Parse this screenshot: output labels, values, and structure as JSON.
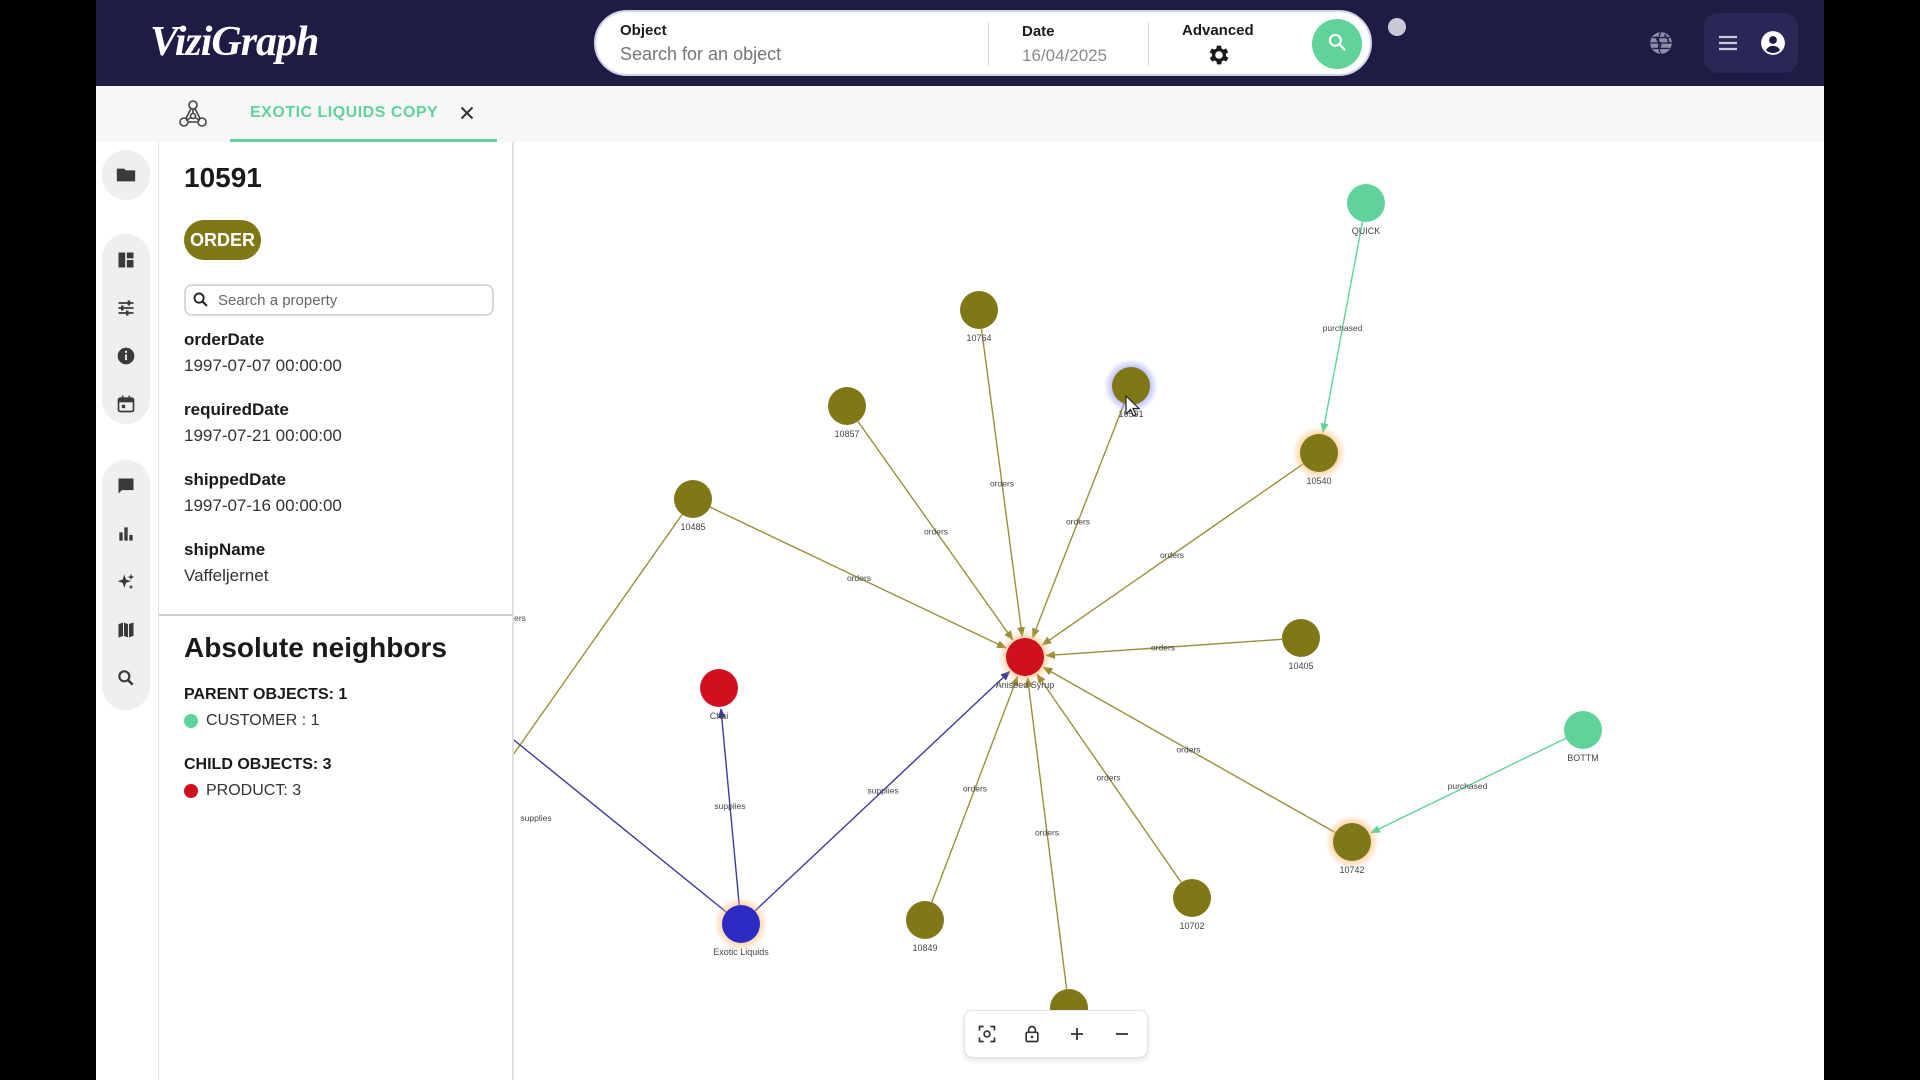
{
  "app": {
    "logo": "ViziGraph"
  },
  "search": {
    "object_label": "Object",
    "object_placeholder": "Search for an object",
    "date_label": "Date",
    "date_value": "16/04/2025",
    "advanced_label": "Advanced"
  },
  "tabs": [
    {
      "label": "EXOTIC LIQUIDS COPY",
      "active": true
    }
  ],
  "panel": {
    "object_id": "10591",
    "object_type": "ORDER",
    "type_color": "#807717",
    "property_search_placeholder": "Search a property",
    "properties": [
      {
        "name": "orderDate",
        "value": "1997-07-07 00:00:00"
      },
      {
        "name": "requiredDate",
        "value": "1997-07-21 00:00:00"
      },
      {
        "name": "shippedDate",
        "value": "1997-07-16 00:00:00"
      },
      {
        "name": "shipName",
        "value": "Vaffeljernet"
      }
    ],
    "neighbors": {
      "title": "Absolute neighbors",
      "parent_header": "PARENT OBJECTS: 1",
      "parents": [
        {
          "label": "CUSTOMER : 1",
          "color": "#5fd39a"
        }
      ],
      "child_header": "CHILD OBJECTS: 3",
      "children": [
        {
          "label": "PRODUCT: 3",
          "color": "#d0101f"
        }
      ]
    }
  },
  "graph": {
    "colors": {
      "order": "#807717",
      "product": "#d0101f",
      "customer": "#5fd39a",
      "supplier": "#2c2cc4",
      "orders_edge": "#9a8f3a",
      "supplies_edge": "#3c3c9c",
      "purchased_edge": "#5fd39a"
    },
    "nodes": [
      {
        "id": "aniseed",
        "label": "Aniseed Syrup",
        "kind": "product"
      },
      {
        "id": "chai",
        "label": "Chai",
        "kind": "product"
      },
      {
        "id": "exotic",
        "label": "Exotic Liquids",
        "kind": "supplier"
      },
      {
        "id": "quick",
        "label": "QUICK",
        "kind": "customer"
      },
      {
        "id": "bottm",
        "label": "BOTTM",
        "kind": "customer"
      },
      {
        "id": "n10764",
        "label": "10764",
        "kind": "order"
      },
      {
        "id": "n10591",
        "label": "10591",
        "kind": "order"
      },
      {
        "id": "n10857",
        "label": "10857",
        "kind": "order"
      },
      {
        "id": "n10485",
        "label": "10485",
        "kind": "order"
      },
      {
        "id": "n10540",
        "label": "10540",
        "kind": "order"
      },
      {
        "id": "n10405",
        "label": "10405",
        "kind": "order"
      },
      {
        "id": "n10742",
        "label": "10742",
        "kind": "order"
      },
      {
        "id": "n10702",
        "label": "10702",
        "kind": "order"
      },
      {
        "id": "n10849",
        "label": "10849",
        "kind": "order"
      },
      {
        "id": "n_bottom",
        "label": "",
        "kind": "order"
      }
    ],
    "edges": [
      {
        "from": "n10764",
        "to": "aniseed",
        "label": "orders",
        "kind": "orders"
      },
      {
        "from": "n10591",
        "to": "aniseed",
        "label": "orders",
        "kind": "orders"
      },
      {
        "from": "n10857",
        "to": "aniseed",
        "label": "orders",
        "kind": "orders"
      },
      {
        "from": "n10485",
        "to": "aniseed",
        "label": "orders",
        "kind": "orders"
      },
      {
        "from": "n10540",
        "to": "aniseed",
        "label": "orders",
        "kind": "orders"
      },
      {
        "from": "n10405",
        "to": "aniseed",
        "label": "orders",
        "kind": "orders"
      },
      {
        "from": "n10742",
        "to": "aniseed",
        "label": "orders",
        "kind": "orders"
      },
      {
        "from": "n10702",
        "to": "aniseed",
        "label": "orders",
        "kind": "orders"
      },
      {
        "from": "n10849",
        "to": "aniseed",
        "label": "orders",
        "kind": "orders"
      },
      {
        "from": "n_bottom",
        "to": "aniseed",
        "label": "orders",
        "kind": "orders"
      },
      {
        "from": "quick",
        "to": "n10540",
        "label": "purchased",
        "kind": "purchased"
      },
      {
        "from": "bottm",
        "to": "n10742",
        "label": "purchased",
        "kind": "purchased"
      },
      {
        "from": "exotic",
        "to": "chai",
        "label": "supplies",
        "kind": "supplies"
      },
      {
        "from": "exotic",
        "to": "aniseed",
        "label": "supplies",
        "kind": "supplies"
      }
    ],
    "offscreen_edge_labels": [
      "ers",
      "supplies"
    ]
  }
}
